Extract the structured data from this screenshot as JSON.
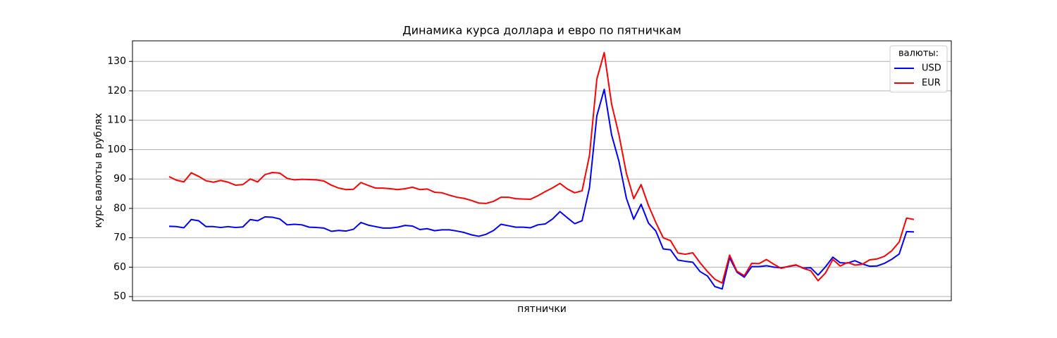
{
  "chart_data": {
    "type": "line",
    "title": "Динамика курса доллара и евро по пятничкам",
    "x_label": "пятнички",
    "y_label": "курс валюты в рублях",
    "legend_title": "валюты:",
    "legend": "upper right",
    "grid": true,
    "ylim": [
      48.6,
      137
    ],
    "yticks": [
      50,
      60,
      70,
      80,
      90,
      100,
      110,
      120,
      130
    ],
    "series": [
      {
        "name": "USD",
        "color": "#0000ff",
        "values": [
          73.9,
          73.8,
          73.4,
          76.2,
          75.8,
          73.8,
          73.8,
          73.5,
          73.8,
          73.5,
          73.7,
          76.2,
          75.8,
          77.1,
          77.0,
          76.4,
          74.4,
          74.6,
          74.4,
          73.6,
          73.5,
          73.3,
          72.2,
          72.5,
          72.3,
          72.9,
          75.2,
          74.3,
          73.8,
          73.3,
          73.3,
          73.6,
          74.2,
          74.0,
          72.8,
          73.1,
          72.4,
          72.7,
          72.7,
          72.3,
          71.8,
          71.0,
          70.5,
          71.2,
          72.5,
          74.6,
          74.1,
          73.6,
          73.6,
          73.4,
          74.4,
          74.7,
          76.4,
          78.9,
          76.8,
          74.8,
          75.8,
          87.0,
          111.5,
          120.5,
          105.0,
          96.0,
          83.5,
          76.3,
          81.4,
          75.0,
          72.3,
          66.2,
          65.9,
          62.4,
          62.0,
          61.7,
          58.5,
          57.0,
          53.4,
          52.6,
          63.2,
          58.3,
          56.6,
          60.2,
          60.2,
          60.5,
          60.0,
          59.8,
          60.2,
          60.7,
          59.7,
          59.8,
          57.3,
          60.1,
          63.4,
          61.5,
          61.4,
          62.2,
          61.1,
          60.3,
          60.4,
          61.3,
          62.7,
          64.5,
          72.1,
          72.0
        ]
      },
      {
        "name": "EUR",
        "color": "#ff0000",
        "values": [
          90.8,
          89.6,
          89.0,
          92.1,
          90.9,
          89.4,
          88.9,
          89.5,
          88.9,
          87.9,
          88.1,
          90.0,
          89.0,
          91.5,
          92.2,
          92.0,
          90.2,
          89.7,
          89.9,
          89.8,
          89.7,
          89.3,
          87.9,
          86.9,
          86.4,
          86.5,
          88.8,
          87.8,
          86.9,
          86.9,
          86.7,
          86.4,
          86.7,
          87.2,
          86.4,
          86.6,
          85.5,
          85.3,
          84.5,
          83.8,
          83.4,
          82.7,
          81.8,
          81.7,
          82.4,
          83.8,
          83.8,
          83.3,
          83.2,
          83.1,
          84.3,
          85.7,
          87.0,
          88.5,
          86.6,
          85.3,
          86.0,
          98.0,
          124.0,
          133.0,
          115.5,
          105.0,
          92.0,
          83.3,
          88.1,
          81.0,
          75.2,
          70.0,
          69.0,
          64.8,
          64.4,
          64.9,
          61.5,
          58.5,
          55.9,
          54.6,
          64.1,
          58.6,
          57.1,
          61.3,
          61.2,
          62.6,
          61.0,
          59.6,
          60.3,
          60.8,
          59.6,
          58.8,
          55.4,
          58.0,
          62.6,
          60.4,
          61.6,
          60.7,
          61.0,
          62.5,
          62.8,
          63.7,
          65.6,
          68.6,
          76.7,
          76.2
        ]
      }
    ]
  }
}
